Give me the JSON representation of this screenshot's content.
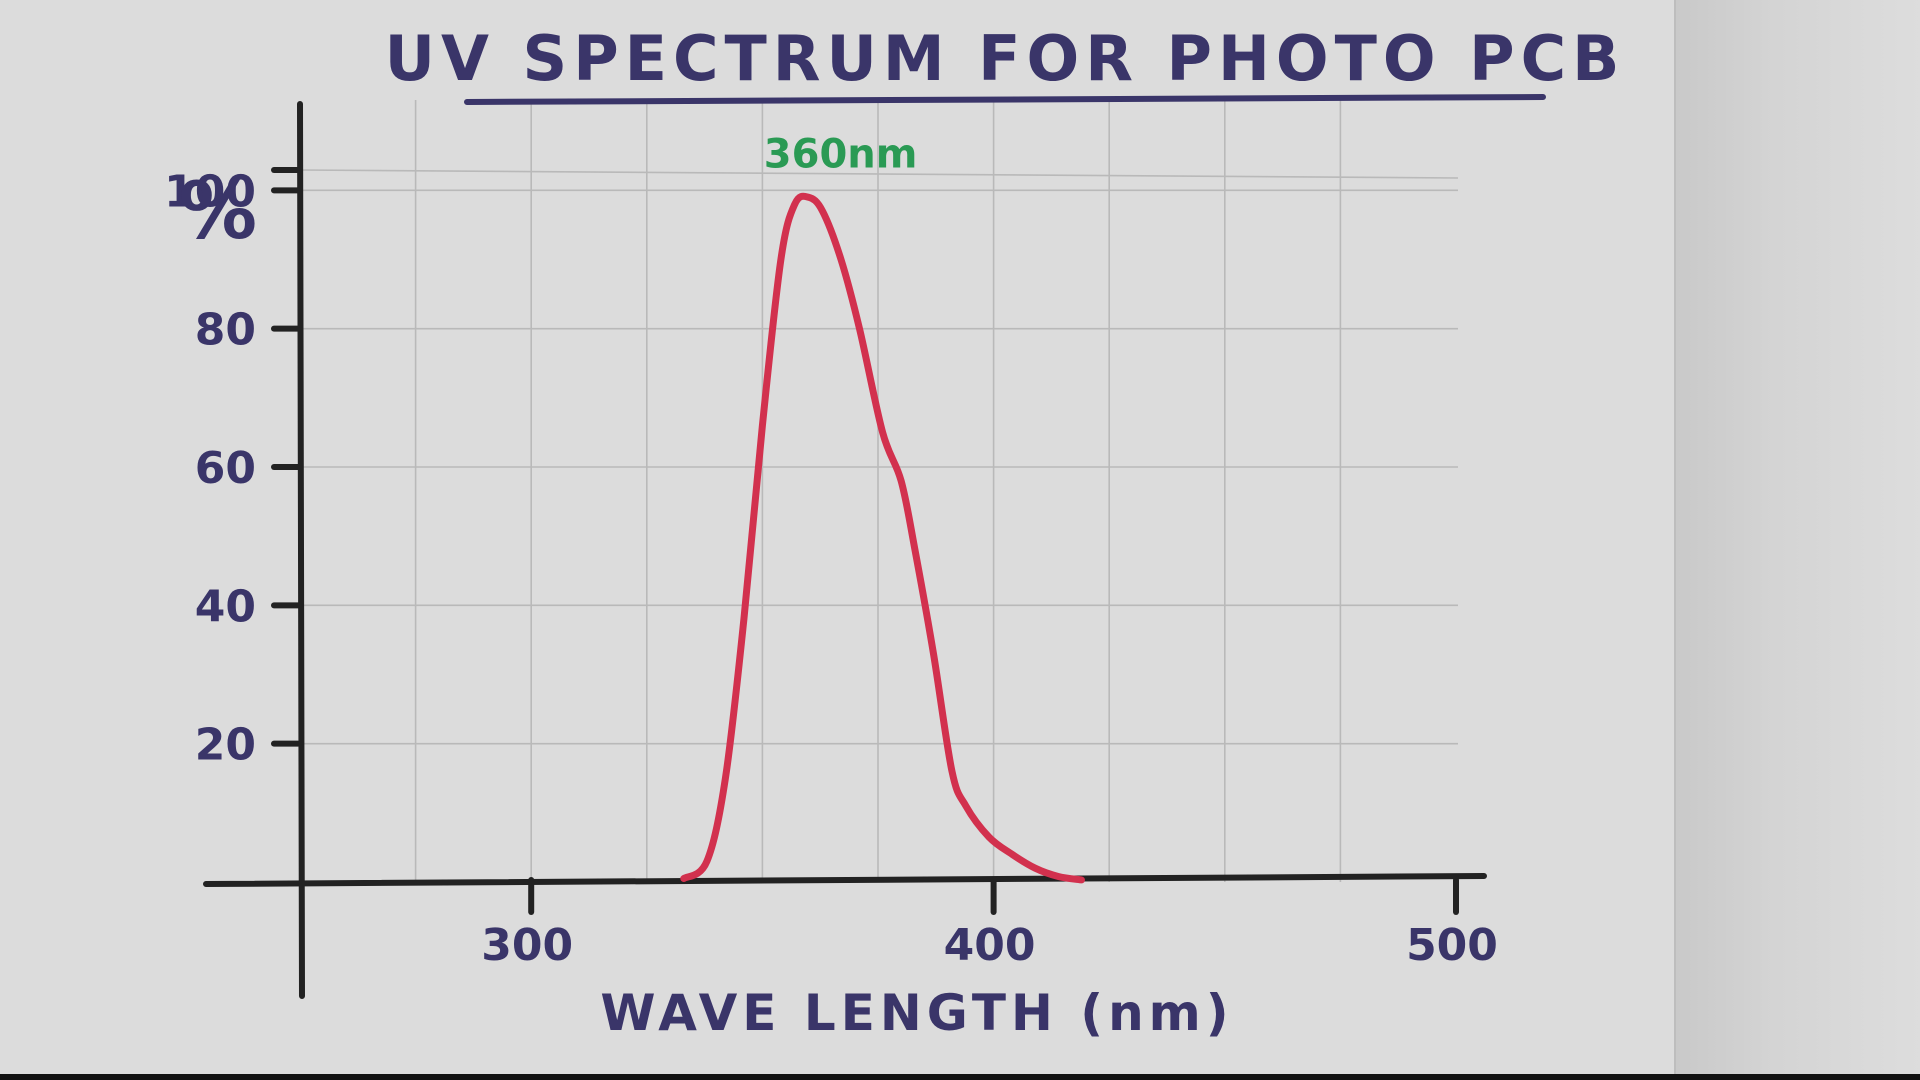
{
  "chart_data": {
    "type": "line",
    "title": "UV SPECTRUM FOR PHOTO PCB",
    "xlabel": "WAVE LENGTH (nm)",
    "ylabel": "%",
    "xlim": [
      250,
      500
    ],
    "ylim": [
      0,
      120
    ],
    "x_ticks": [
      300,
      400,
      500
    ],
    "x_tick_labels": [
      "300",
      "400",
      "500"
    ],
    "y_ticks": [
      20,
      40,
      60,
      80,
      100
    ],
    "y_tick_labels": [
      "20",
      "40",
      "60",
      "80",
      "100"
    ],
    "grid": true,
    "series": [
      {
        "color": "#d2314e",
        "x": [
          333,
          338,
          342,
          346,
          350,
          354,
          357,
          360,
          363,
          367,
          371,
          376,
          380,
          383,
          387,
          391,
          394,
          399,
          404,
          409,
          414,
          419
        ],
        "y": [
          0.5,
          3,
          15,
          38,
          66,
          90,
          98,
          99,
          97,
          90,
          80,
          65,
          58,
          48,
          33,
          16,
          11,
          6.5,
          4,
          2,
          0.8,
          0.3
        ]
      }
    ],
    "annotations": [
      {
        "text": "360nm",
        "x": 360,
        "y": 99,
        "color": "#2a9a54"
      }
    ]
  },
  "colors": {
    "ink": "#3a3569",
    "axis": "#222222",
    "curve": "#d2314e",
    "annotation": "#2a9a54",
    "grid": "#b9b9b9"
  }
}
